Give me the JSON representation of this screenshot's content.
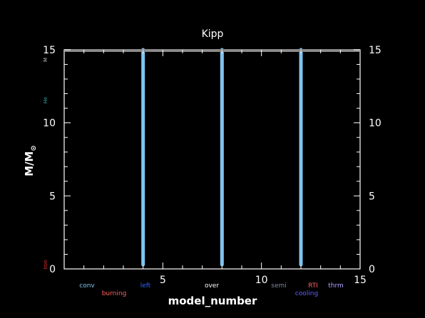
{
  "chart_data": {
    "type": "line",
    "title": "Kipp",
    "xlabel": "model_number",
    "ylabel_main": "M/M",
    "ylabel_sub": "⊙",
    "xlim": [
      0,
      15
    ],
    "ylim": [
      0,
      15
    ],
    "x_ticks": [
      {
        "value": 5,
        "label": "5"
      },
      {
        "value": 10,
        "label": "10"
      },
      {
        "value": 15,
        "label": "15"
      }
    ],
    "y_ticks_left": [
      {
        "value": 0,
        "label": "0"
      },
      {
        "value": 5,
        "label": "5"
      },
      {
        "value": 10,
        "label": "10"
      },
      {
        "value": 15,
        "label": "15"
      }
    ],
    "y_ticks_right": [
      {
        "value": 0,
        "label": "0"
      },
      {
        "value": 5,
        "label": "5"
      },
      {
        "value": 10,
        "label": "10"
      },
      {
        "value": 15,
        "label": "15"
      }
    ],
    "grid": false,
    "series": [
      {
        "name": "conv",
        "color": "#7fc4f0",
        "segments": [
          {
            "x": 4,
            "y0": 0.3,
            "y1": 15
          },
          {
            "x": 8,
            "y0": 0.3,
            "y1": 15
          },
          {
            "x": 12,
            "y0": 0.3,
            "y1": 15
          }
        ]
      },
      {
        "name": "top_boundary",
        "color": "#8a8a8a",
        "y": 15
      }
    ],
    "legend": [
      {
        "label": "conv",
        "color": "#7fc4f0"
      },
      {
        "label": "burning",
        "color": "#ff6060"
      },
      {
        "label": "left",
        "color": "#3060ff"
      },
      {
        "label": "over",
        "color": "#ffffff"
      },
      {
        "label": "semi",
        "color": "#7a8aa0"
      },
      {
        "label": "RTI",
        "color": "#ff6060"
      },
      {
        "label": "cooling",
        "color": "#6060ff"
      },
      {
        "label": "thrm",
        "color": "#b0a0ff"
      }
    ],
    "side_labels": [
      {
        "label": "He",
        "color": "#30a0a0"
      },
      {
        "label": "Iron",
        "color": "#ff3030"
      },
      {
        "label": "M",
        "color": "#bbbbbb"
      }
    ]
  }
}
